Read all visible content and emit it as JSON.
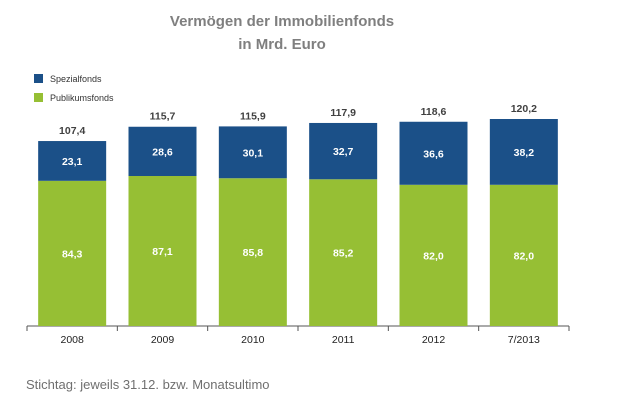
{
  "colors": {
    "spezialfonds": "#1b5088",
    "publikumsfonds": "#96bf34",
    "title": "#7f7f7f",
    "axis": "#555555"
  },
  "chart_data": {
    "type": "bar",
    "stacked": true,
    "title_lines": [
      "Vermögen der Immobilienfonds",
      "in Mrd. Euro"
    ],
    "categories": [
      "2008",
      "2009",
      "2010",
      "2011",
      "2012",
      "7/2013"
    ],
    "totals": [
      "107,4",
      "115,7",
      "115,9",
      "117,9",
      "118,6",
      "120,2"
    ],
    "series": [
      {
        "name": "Publikumsfonds",
        "values": [
          84.3,
          87.1,
          85.8,
          85.2,
          82.0,
          82.0
        ],
        "labels": [
          "84,3",
          "87,1",
          "85,8",
          "85,2",
          "82,0",
          "82,0"
        ]
      },
      {
        "name": "Spezialfonds",
        "values": [
          23.1,
          28.6,
          30.1,
          32.7,
          36.6,
          38.2
        ],
        "labels": [
          "23,1",
          "28,6",
          "30,1",
          "32,7",
          "36,6",
          "38,2"
        ]
      }
    ],
    "ylim": [
      0,
      120.2
    ],
    "grid": false,
    "legend": "top-left",
    "xlabel": "",
    "ylabel": ""
  },
  "footnote": "Stichtag: jeweils 31.12. bzw. Monatsultimo"
}
